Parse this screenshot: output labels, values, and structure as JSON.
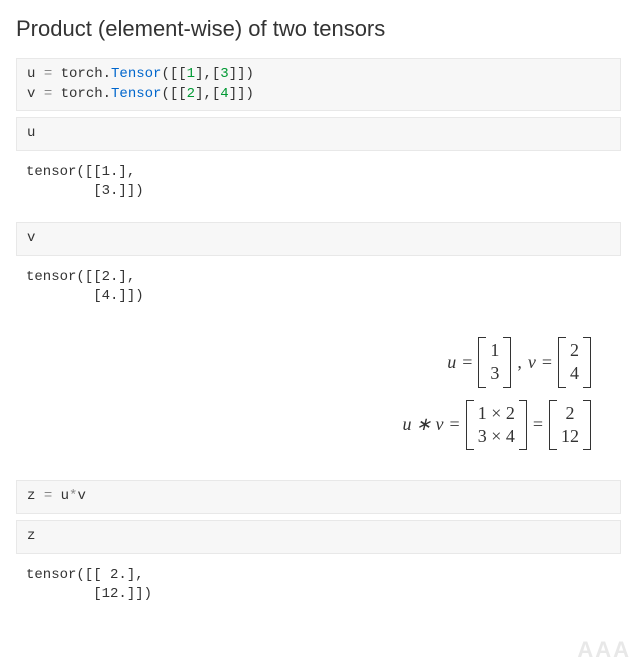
{
  "title": "Product (element-wise) of two tensors",
  "colors": {
    "background": "#ffffff",
    "cell_bg": "#f7f7f7",
    "cell_border": "#e8e8e8",
    "text": "#333333",
    "operator": "#888888",
    "number": "#009933",
    "call": "#0066cc",
    "watermark": "#e8e8e8"
  },
  "fonts": {
    "heading_size": 22,
    "code_size": 14,
    "math_size": 18,
    "code_family": "Consolas, Courier New, monospace",
    "math_family": "Cambria Math, Times New Roman, serif"
  },
  "cells": {
    "c1_l1_a": "u ",
    "c1_l1_b": "=",
    "c1_l1_c": " torch.",
    "c1_l1_d": "Tensor",
    "c1_l1_e": "([[",
    "c1_l1_f": "1",
    "c1_l1_g": "],[",
    "c1_l1_h": "3",
    "c1_l1_i": "]])",
    "c1_l2_a": "v ",
    "c1_l2_b": "=",
    "c1_l2_c": " torch.",
    "c1_l2_d": "Tensor",
    "c1_l2_e": "([[",
    "c1_l2_f": "2",
    "c1_l2_g": "],[",
    "c1_l2_h": "4",
    "c1_l2_i": "]])",
    "c2": "u",
    "o2": "tensor([[1.],\n        [3.]])",
    "c3": "v",
    "o3": "tensor([[2.],\n        [4.]])",
    "c4_a": "z ",
    "c4_b": "=",
    "c4_c": " u",
    "c4_d": "*",
    "c4_e": "v",
    "c5": "z",
    "o5": "tensor([[ 2.],\n        [12.]])"
  },
  "math": {
    "r1_u": "u",
    "r1_eq1": "=",
    "r1_m1_a": "1",
    "r1_m1_b": "3",
    "r1_comma": ",  ",
    "r1_v": "v",
    "r1_eq2": "=",
    "r1_m2_a": "2",
    "r1_m2_b": "4",
    "r2_lhs": "u ∗ v",
    "r2_eq1": "=",
    "r2_m1_a": "1 × 2",
    "r2_m1_b": "3 × 4",
    "r2_eq2": "=",
    "r2_m2_a": "2",
    "r2_m2_b": "12"
  },
  "watermark": "AAA"
}
